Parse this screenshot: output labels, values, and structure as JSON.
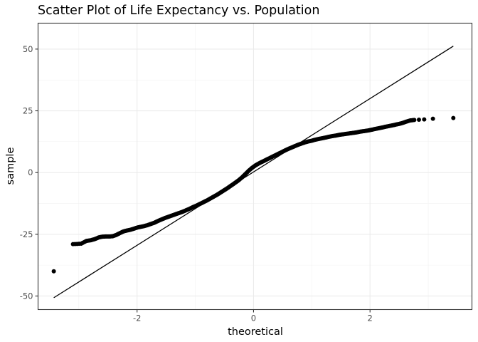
{
  "chart_data": {
    "type": "scatter",
    "title": "Scatter Plot of Life Expectancy vs. Population",
    "xlabel": "theoretical",
    "ylabel": "sample",
    "xlim": [
      -3.7,
      3.75
    ],
    "ylim": [
      -55.5,
      60.5
    ],
    "x_ticks": [
      -2,
      0,
      2
    ],
    "x_tick_labels": [
      "-2",
      "0",
      "2"
    ],
    "y_ticks": [
      -50,
      -25,
      0,
      25,
      50
    ],
    "y_tick_labels": [
      "-50",
      "-25",
      "0",
      "25",
      "50"
    ],
    "grid": true,
    "reference_line": {
      "x": [
        -3.43,
        3.43
      ],
      "y": [
        -50.7,
        51.2
      ]
    },
    "series": [
      {
        "values": [
          [
            -3.43,
            -40.0
          ],
          [
            -3.1,
            -29.0
          ],
          [
            -2.96,
            -28.8
          ],
          [
            -2.87,
            -27.7
          ],
          [
            -2.79,
            -27.4
          ],
          [
            -2.72,
            -26.9
          ],
          [
            -2.66,
            -26.3
          ],
          [
            -2.6,
            -26.0
          ],
          [
            -2.54,
            -25.9
          ],
          [
            -2.48,
            -25.9
          ],
          [
            -2.42,
            -25.8
          ],
          [
            -2.36,
            -25.3
          ],
          [
            -2.3,
            -24.6
          ],
          [
            -2.24,
            -23.9
          ],
          [
            -2.18,
            -23.5
          ],
          [
            -2.12,
            -23.2
          ],
          [
            -2.06,
            -22.8
          ],
          [
            -2.0,
            -22.3
          ],
          [
            -1.94,
            -22.0
          ],
          [
            -1.88,
            -21.7
          ],
          [
            -1.82,
            -21.3
          ],
          [
            -1.76,
            -20.8
          ],
          [
            -1.7,
            -20.3
          ],
          [
            -1.64,
            -19.6
          ],
          [
            -1.58,
            -19.0
          ],
          [
            -1.52,
            -18.4
          ],
          [
            -1.46,
            -17.9
          ],
          [
            -1.4,
            -17.4
          ],
          [
            -1.34,
            -16.9
          ],
          [
            -1.28,
            -16.4
          ],
          [
            -1.22,
            -15.9
          ],
          [
            -1.16,
            -15.3
          ],
          [
            -1.1,
            -14.7
          ],
          [
            -1.04,
            -14.0
          ],
          [
            -0.98,
            -13.4
          ],
          [
            -0.92,
            -12.7
          ],
          [
            -0.86,
            -12.0
          ],
          [
            -0.8,
            -11.3
          ],
          [
            -0.74,
            -10.5
          ],
          [
            -0.68,
            -9.7
          ],
          [
            -0.62,
            -8.9
          ],
          [
            -0.56,
            -8.0
          ],
          [
            -0.5,
            -7.1
          ],
          [
            -0.44,
            -6.2
          ],
          [
            -0.38,
            -5.2
          ],
          [
            -0.32,
            -4.2
          ],
          [
            -0.26,
            -3.2
          ],
          [
            -0.2,
            -2.0
          ],
          [
            -0.14,
            -0.6
          ],
          [
            -0.08,
            0.8
          ],
          [
            -0.02,
            2.0
          ],
          [
            0.04,
            3.0
          ],
          [
            0.1,
            3.8
          ],
          [
            0.16,
            4.5
          ],
          [
            0.22,
            5.2
          ],
          [
            0.28,
            5.9
          ],
          [
            0.34,
            6.6
          ],
          [
            0.4,
            7.3
          ],
          [
            0.46,
            8.0
          ],
          [
            0.52,
            8.7
          ],
          [
            0.58,
            9.4
          ],
          [
            0.64,
            10.0
          ],
          [
            0.7,
            10.6
          ],
          [
            0.76,
            11.2
          ],
          [
            0.82,
            11.7
          ],
          [
            0.88,
            12.2
          ],
          [
            0.94,
            12.6
          ],
          [
            1.0,
            12.9
          ],
          [
            1.06,
            13.3
          ],
          [
            1.12,
            13.6
          ],
          [
            1.18,
            13.9
          ],
          [
            1.24,
            14.2
          ],
          [
            1.3,
            14.5
          ],
          [
            1.36,
            14.8
          ],
          [
            1.42,
            15.0
          ],
          [
            1.48,
            15.3
          ],
          [
            1.54,
            15.5
          ],
          [
            1.6,
            15.7
          ],
          [
            1.66,
            15.9
          ],
          [
            1.72,
            16.1
          ],
          [
            1.78,
            16.3
          ],
          [
            1.84,
            16.6
          ],
          [
            1.9,
            16.8
          ],
          [
            1.96,
            17.0
          ],
          [
            2.02,
            17.3
          ],
          [
            2.08,
            17.6
          ],
          [
            2.14,
            17.9
          ],
          [
            2.2,
            18.2
          ],
          [
            2.26,
            18.5
          ],
          [
            2.32,
            18.8
          ],
          [
            2.38,
            19.1
          ],
          [
            2.44,
            19.4
          ],
          [
            2.5,
            19.7
          ],
          [
            2.56,
            20.1
          ],
          [
            2.62,
            20.6
          ],
          [
            2.69,
            21.1
          ],
          [
            2.76,
            21.3
          ],
          [
            2.84,
            21.4
          ],
          [
            2.93,
            21.5
          ],
          [
            3.08,
            21.8
          ],
          [
            3.43,
            22.1
          ]
        ]
      }
    ]
  }
}
